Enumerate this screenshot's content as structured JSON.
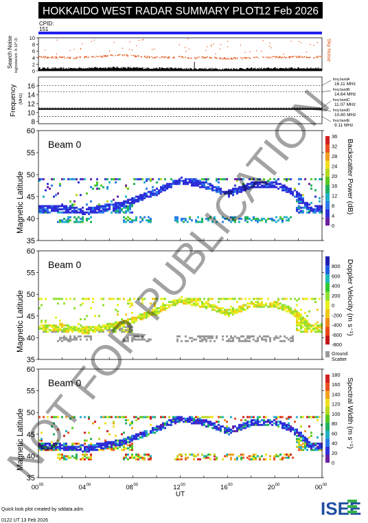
{
  "header": {
    "title": "HOKKAIDO WEST RADAR SUMMARY PLOT",
    "date": "12 Feb 2026",
    "cpid_label": "CPID:",
    "cpid_value": "151"
  },
  "footer": {
    "credit": "Quick look plot created by sddata.adm",
    "generated": "0122 UT 13 Feb 2026",
    "logo": "ISEE",
    "watermark": "NOT FOR PUBLICATION"
  },
  "colors": {
    "cpid_bar": "#2222ee",
    "sky_noise": "#e05010",
    "search_noise": "#000000",
    "ground_scatter": "#9a9a9a",
    "logo_blue": "#1f4fa0",
    "logo_green": "#35b04a"
  },
  "chart_data": [
    {
      "type": "line",
      "panel": "noise",
      "ylabel": "Search Noise",
      "ylabel_sub": "log(noise/arb. ln 10^-3)",
      "y2label": "Sky Noise",
      "ylim": [
        0,
        10
      ],
      "yticks": [
        0,
        2,
        4,
        6,
        8,
        10
      ],
      "series": [
        {
          "name": "Sky Noise",
          "x": [
            0,
            1,
            2,
            3,
            4,
            5,
            6,
            7,
            8,
            9,
            10,
            11,
            12,
            13,
            14,
            15,
            16,
            17,
            18,
            19,
            20,
            21,
            22,
            23,
            24
          ],
          "values": [
            4.3,
            4.0,
            4.0,
            3.9,
            4.1,
            4.2,
            4.6,
            4.7,
            4.5,
            4.2,
            4.1,
            4.0,
            4.2,
            3.8,
            4.1,
            3.9,
            3.7,
            3.8,
            3.9,
            4.0,
            4.1,
            4.1,
            4.2,
            4.1,
            4.2
          ]
        },
        {
          "name": "Search Noise",
          "x": [
            0,
            1,
            2,
            3,
            4,
            5,
            6,
            7,
            8,
            9,
            10,
            11,
            12,
            13,
            14,
            15,
            16,
            17,
            18,
            19,
            20,
            21,
            22,
            23,
            24
          ],
          "values": [
            0.8,
            0.8,
            0.7,
            0.8,
            0.9,
            0.9,
            1.0,
            1.0,
            0.9,
            0.8,
            0.8,
            0.8,
            0.7,
            0.6,
            0.7,
            0.6,
            0.6,
            0.7,
            0.7,
            0.7,
            0.8,
            0.8,
            0.8,
            0.8,
            0.8
          ]
        }
      ]
    },
    {
      "type": "line",
      "panel": "frequency",
      "ylabel": "Frequency",
      "yunit": "(MHz)",
      "ylim": [
        7.5,
        18
      ],
      "yticks": [
        8,
        10,
        12,
        14,
        16
      ],
      "bands": [
        {
          "name": "freq bandA",
          "mhz": "16.11 MHz",
          "value": 16.11
        },
        {
          "name": "freq bandB",
          "mhz": "14.64 MHz",
          "value": 14.64
        },
        {
          "name": "freq bandC",
          "mhz": "11.07 MHz",
          "value": 11.07
        },
        {
          "name": "freq bandD",
          "mhz": "10.80 MHz",
          "value": 10.8
        },
        {
          "name": "freq bandE",
          "mhz": "9.11 MHz",
          "value": 9.11
        }
      ],
      "series": [
        {
          "name": "operating",
          "x": [
            0,
            24
          ],
          "values": [
            10.8,
            10.8
          ]
        }
      ]
    },
    {
      "type": "heatmap",
      "panel": "power",
      "beam_label": "Beam  0",
      "ylabel": "Magnetic Latitude",
      "ylim": [
        35,
        60
      ],
      "yticks": [
        35,
        40,
        45,
        50,
        55,
        60
      ],
      "colorbar_label": "Backscatter Power (dB)",
      "colorbar_ticks": [
        "0",
        "4",
        "8",
        "12",
        "16",
        "20",
        "24",
        "28",
        "32",
        "36"
      ],
      "colorbar_colors": [
        "#6a1fa0",
        "#3030d8",
        "#2a7ae8",
        "#22b0c8",
        "#1fb060",
        "#58c820",
        "#b8d820",
        "#f0e020",
        "#f0a020",
        "#e85020",
        "#d02020"
      ],
      "lower_edge": {
        "x": [
          0,
          2,
          4,
          5,
          6,
          7,
          8,
          9,
          10,
          11,
          12,
          14,
          15,
          16,
          18,
          20,
          21,
          22,
          23,
          24
        ],
        "values": [
          42,
          42,
          41.5,
          42,
          42.5,
          43,
          44,
          45,
          46,
          47.5,
          48.5,
          47.5,
          46.5,
          45.5,
          47.5,
          47.5,
          46.5,
          45,
          42,
          42
        ]
      }
    },
    {
      "type": "heatmap",
      "panel": "velocity",
      "beam_label": "Beam  0",
      "ylabel": "Magnetic Latitude",
      "ylim": [
        35,
        60
      ],
      "yticks": [
        35,
        40,
        45,
        50,
        55,
        60
      ],
      "colorbar_label": "Doppler Velocity (m s⁻¹)",
      "colorbar_ticks": [
        "-800",
        "-600",
        "-400",
        "-200",
        "0",
        "200",
        "400",
        "600",
        "800"
      ],
      "colorbar_colors": [
        "#c01818",
        "#e84818",
        "#f08818",
        "#f0c818",
        "#e8f020",
        "#90e030",
        "#30c830",
        "#20b8b8",
        "#2060e0",
        "#2020b0"
      ],
      "ground_scatter_label": [
        "Ground",
        "Scatter"
      ]
    },
    {
      "type": "heatmap",
      "panel": "width",
      "beam_label": "Beam  0",
      "ylabel": "Magnetic Latitude",
      "ylim": [
        35,
        60
      ],
      "yticks": [
        35,
        40,
        45,
        50,
        55,
        60
      ],
      "colorbar_label": "Spectral Width (m s⁻¹)",
      "colorbar_ticks": [
        "0",
        "20",
        "40",
        "60",
        "80",
        "100",
        "120",
        "140",
        "160",
        "180"
      ],
      "colorbar_colors": [
        "#6a1fa0",
        "#3030d8",
        "#2a7ae8",
        "#22b0c8",
        "#1fb060",
        "#58c820",
        "#b8d820",
        "#f0e020",
        "#f0a020",
        "#e85020",
        "#d02020"
      ]
    }
  ],
  "x_axis": {
    "label": "UT",
    "ticks": [
      {
        "hh": "00",
        "mm": "00"
      },
      {
        "hh": "04",
        "mm": "00"
      },
      {
        "hh": "08",
        "mm": "00"
      },
      {
        "hh": "12",
        "mm": "00"
      },
      {
        "hh": "16",
        "mm": "00"
      },
      {
        "hh": "20",
        "mm": "00"
      },
      {
        "hh": "00",
        "mm": "00"
      }
    ]
  }
}
